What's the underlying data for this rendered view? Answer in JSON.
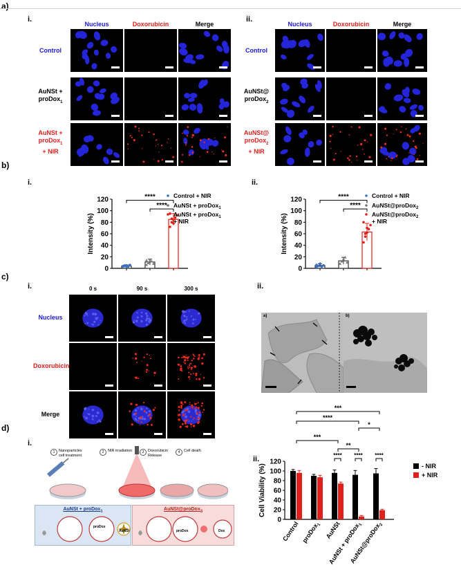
{
  "panel_a": {
    "label": "a)",
    "i": {
      "label": "i.",
      "columns": [
        "Nucleus",
        "Doxorubicin",
        "Merge"
      ],
      "rows": [
        {
          "lines": [
            "Control"
          ],
          "color": "#1a1adb"
        },
        {
          "lines": [
            "AuNSt +",
            "proDox",
            "1"
          ],
          "color": "#000000"
        },
        {
          "lines": [
            "AuNSt +",
            "proDox",
            "1",
            "+ NIR"
          ],
          "color": "#e0201b"
        }
      ]
    },
    "ii": {
      "label": "ii.",
      "columns": [
        "Nucleus",
        "Doxorubicin",
        "Merge"
      ],
      "rows": [
        {
          "lines": [
            "Control"
          ],
          "color": "#1a1adb"
        },
        {
          "lines": [
            "AuNSt@",
            "proDox",
            "2"
          ],
          "color": "#000000"
        },
        {
          "lines": [
            "AuNSt@",
            "proDox",
            "2",
            "+ NIR"
          ],
          "color": "#e0201b"
        }
      ]
    }
  },
  "panel_b": {
    "label": "b)",
    "i_label": "i.",
    "ii_label": "ii.",
    "significance": "****"
  },
  "panel_c": {
    "label": "c)",
    "i_label": "i.",
    "ii_label": "ii.",
    "times": [
      "0 s",
      "90 s",
      "300 s"
    ],
    "rows": [
      "Nucleus",
      "Doxorubicin",
      "Merge"
    ],
    "tem_labels": [
      "a)",
      "b)"
    ]
  },
  "panel_d": {
    "label": "d)",
    "i_label": "i.",
    "ii_label": "ii.",
    "steps": [
      {
        "num": "1",
        "text": "Nanoparticles cell treatment"
      },
      {
        "num": "2",
        "text": "NIR irradiation"
      },
      {
        "num": "3",
        "text": "Doxorubicin Release"
      },
      {
        "num": "4",
        "text": "Cell death"
      }
    ],
    "box_left": {
      "title": "AuNSt + proDox",
      "sub": "1",
      "items": [
        "proDox1",
        "proDox",
        "AuNSt"
      ]
    },
    "box_right": {
      "title": "AuNSt@proDox",
      "sub": "2",
      "items": [
        "proDox",
        "Dox"
      ]
    },
    "colors": {
      "blue_box": "#dbe6f4",
      "red_box": "#f8dcdc"
    }
  },
  "chart_data": [
    {
      "type": "bar",
      "panel": "b-i",
      "ylabel": "Intensity (%)",
      "ylim": [
        0,
        120
      ],
      "yticks": [
        0,
        20,
        40,
        60,
        80,
        100,
        120
      ],
      "categories": [
        "Control + NIR",
        "AuNSt + proDox1",
        "AuNSt + proDox1 + NIR"
      ],
      "legend": [
        "Control + NIR",
        "AuNSt + proDox",
        "AuNSt + proDox",
        "+ NIR"
      ],
      "values": [
        4,
        11,
        85
      ],
      "errors": [
        2,
        5,
        10
      ],
      "point_colors": [
        "#3a6fc4",
        "#777777",
        "#e0201b"
      ],
      "points": [
        [
          3,
          4,
          5,
          3,
          6,
          4,
          5,
          3
        ],
        [
          6,
          9,
          15,
          12,
          8,
          14
        ],
        [
          72,
          80,
          84,
          88,
          92,
          95,
          86,
          78
        ]
      ],
      "significance": [
        {
          "from": 0,
          "to": 2,
          "label": "****"
        },
        {
          "from": 1,
          "to": 2,
          "label": "****"
        }
      ]
    },
    {
      "type": "bar",
      "panel": "b-ii",
      "ylabel": "Intensity (%)",
      "ylim": [
        0,
        120
      ],
      "yticks": [
        0,
        20,
        40,
        60,
        80,
        100,
        120
      ],
      "categories": [
        "Control + NIR",
        "AuNSt@proDox2",
        "AuNSt@proDox2 + NIR"
      ],
      "legend": [
        "Control + NIR",
        "AuNSt@proDox",
        "AuNSt@proDox",
        "+ NIR"
      ],
      "values": [
        5,
        13,
        63
      ],
      "errors": [
        3,
        6,
        15
      ],
      "point_colors": [
        "#3a6fc4",
        "#777777",
        "#e0201b"
      ],
      "points": [
        [
          2,
          4,
          8,
          3,
          5,
          6
        ],
        [
          8,
          12,
          16,
          19,
          10
        ],
        [
          45,
          55,
          62,
          68,
          75,
          80,
          60,
          70
        ]
      ],
      "significance": [
        {
          "from": 0,
          "to": 2,
          "label": "****"
        },
        {
          "from": 1,
          "to": 2,
          "label": "****"
        }
      ]
    },
    {
      "type": "bar",
      "panel": "d-ii",
      "ylabel": "Cell Viability (%)",
      "ylim": [
        0,
        120
      ],
      "yticks": [
        0,
        20,
        40,
        60,
        80,
        100,
        120
      ],
      "categories": [
        "Control",
        "proDox1",
        "AuNSt",
        "AuNSt + proDox1",
        "AuNSt@proDox2"
      ],
      "series": [
        {
          "name": "- NIR",
          "color": "#000000",
          "values": [
            100,
            90,
            96,
            92,
            95
          ],
          "errors": [
            3,
            3,
            6,
            9,
            10
          ]
        },
        {
          "name": "+ NIR",
          "color": "#e0201b",
          "values": [
            96,
            87,
            74,
            6,
            19
          ],
          "errors": [
            5,
            4,
            3,
            2,
            2
          ]
        }
      ],
      "significance": [
        "***",
        "****",
        "*",
        "***",
        "**",
        "****",
        "****",
        "****"
      ]
    }
  ]
}
